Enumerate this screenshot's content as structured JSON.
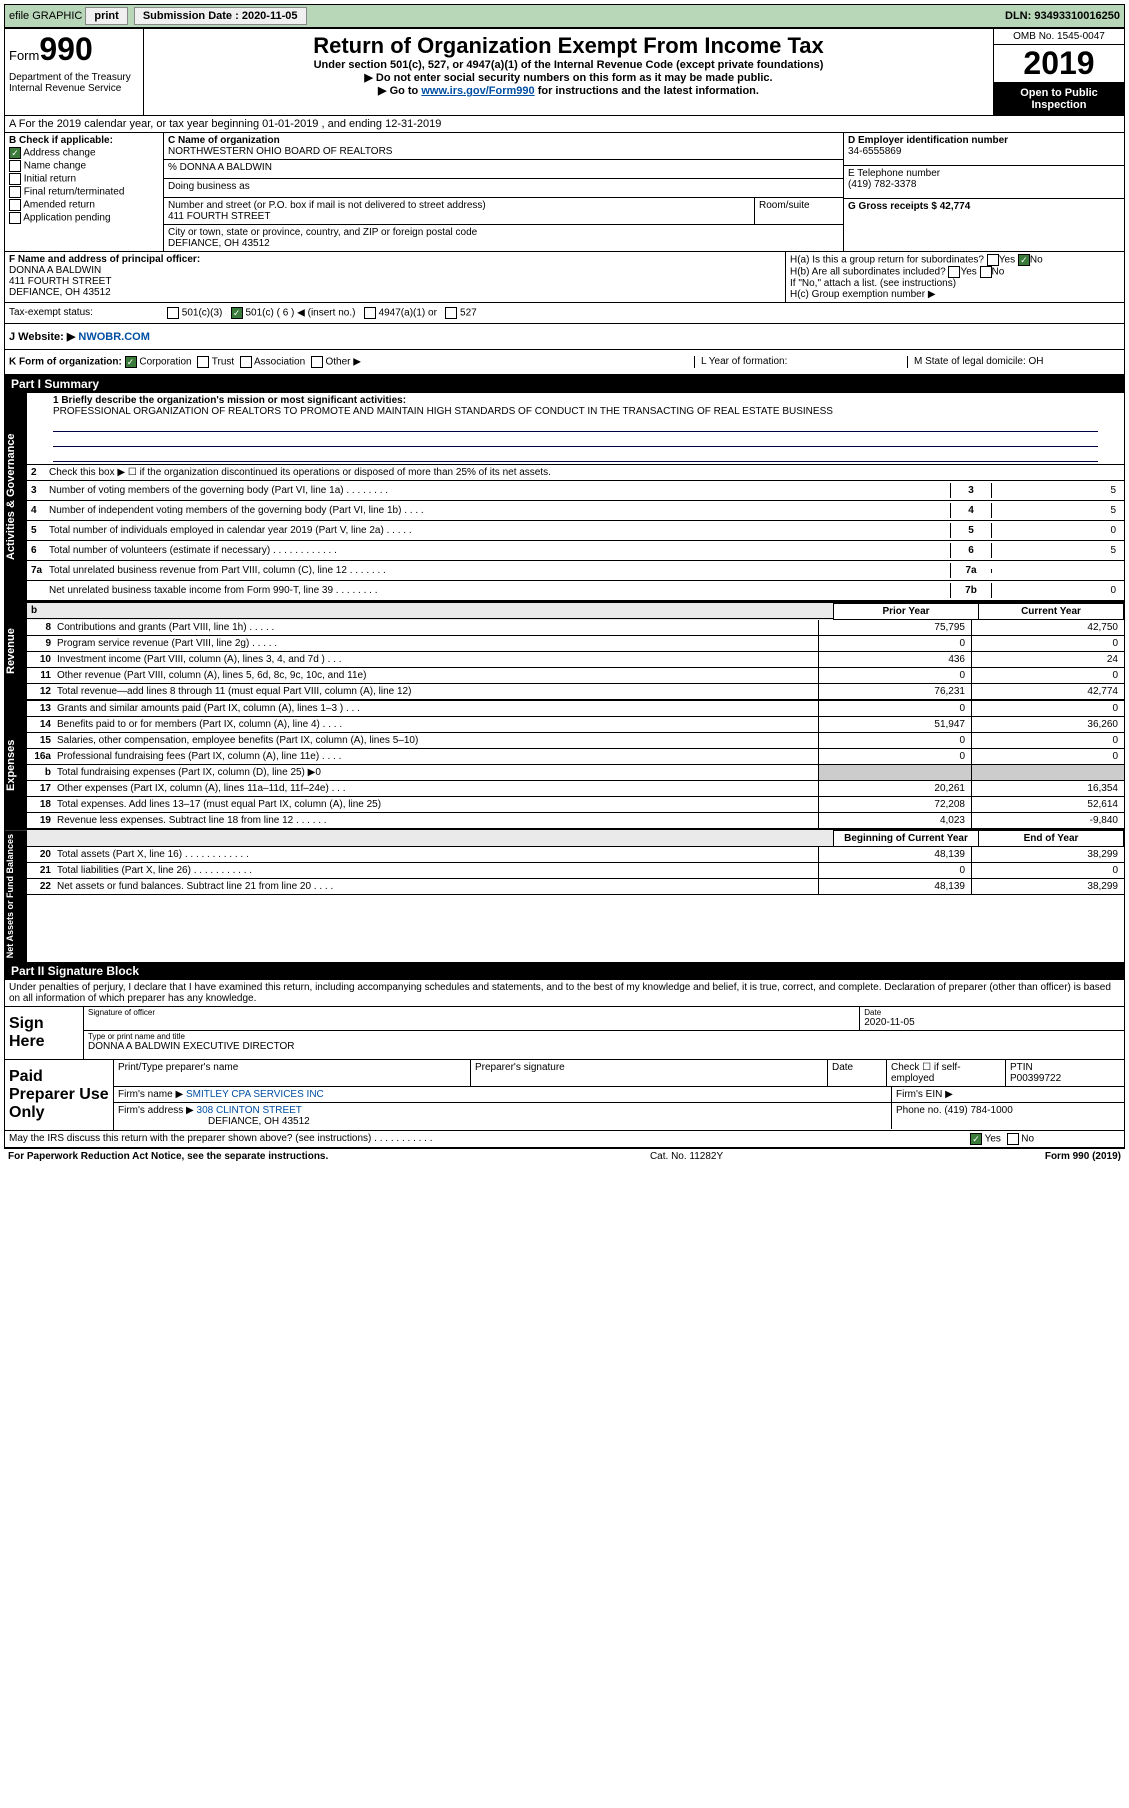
{
  "topbar": {
    "efile": "efile GRAPHIC",
    "print": "print",
    "sub_label": "Submission Date : 2020-11-05",
    "dln": "DLN: 93493310016250"
  },
  "header": {
    "form_word": "Form",
    "form_num": "990",
    "title": "Return of Organization Exempt From Income Tax",
    "sub1": "Under section 501(c), 527, or 4947(a)(1) of the Internal Revenue Code (except private foundations)",
    "sub2": "▶ Do not enter social security numbers on this form as it may be made public.",
    "sub3_a": "▶ Go to ",
    "sub3_link": "www.irs.gov/Form990",
    "sub3_b": " for instructions and the latest information.",
    "omb": "OMB No. 1545-0047",
    "year": "2019",
    "inspect1": "Open to Public",
    "inspect2": "Inspection",
    "dept1": "Department of the Treasury",
    "dept2": "Internal Revenue Service"
  },
  "rowA": "A For the 2019 calendar year, or tax year beginning 01-01-2019     , and ending 12-31-2019",
  "B": {
    "hdr": "B Check if applicable:",
    "addr": "Address change",
    "name": "Name change",
    "init": "Initial return",
    "final": "Final return/terminated",
    "amend": "Amended return",
    "app": "Application pending"
  },
  "C": {
    "name_lbl": "C Name of organization",
    "name": "NORTHWESTERN OHIO BOARD OF REALTORS",
    "care": "% DONNA A BALDWIN",
    "dba_lbl": "Doing business as",
    "street_lbl": "Number and street (or P.O. box if mail is not delivered to street address)",
    "street": "411 FOURTH STREET",
    "suite_lbl": "Room/suite",
    "city_lbl": "City or town, state or province, country, and ZIP or foreign postal code",
    "city": "DEFIANCE, OH  43512"
  },
  "D": {
    "ein_lbl": "D Employer identification number",
    "ein": "34-6555869",
    "tel_lbl": "E Telephone number",
    "tel": "(419) 782-3378",
    "gross_lbl": "G Gross receipts $ 42,774"
  },
  "F": {
    "lbl": "F  Name and address of principal officer:",
    "name": "DONNA A BALDWIN",
    "street": "411 FOURTH STREET",
    "city": "DEFIANCE, OH  43512"
  },
  "H": {
    "a": "H(a)  Is this a group return for subordinates?",
    "a_yes": "Yes",
    "a_no": "No",
    "b": "H(b)  Are all subordinates included?",
    "b_yes": "Yes",
    "b_no": "No",
    "b_note": "If \"No,\" attach a list. (see instructions)",
    "c": "H(c)  Group exemption number ▶"
  },
  "I": {
    "lbl": "Tax-exempt status:",
    "o1": "501(c)(3)",
    "o2": "501(c) ( 6 ) ◀ (insert no.)",
    "o3": "4947(a)(1) or",
    "o4": "527"
  },
  "J": {
    "lbl": "J  Website: ▶",
    "val": "NWOBR.COM"
  },
  "K": {
    "lbl": "K Form of organization:",
    "corp": "Corporation",
    "trust": "Trust",
    "assoc": "Association",
    "other": "Other ▶",
    "L_lbl": "L Year of formation:",
    "M_lbl": "M State of legal domicile: OH"
  },
  "part1": {
    "hdr": "Part I      Summary",
    "vtab_ag": "Activities & Governance",
    "vtab_rev": "Revenue",
    "vtab_exp": "Expenses",
    "vtab_net": "Net Assets or Fund Balances",
    "q1": "1   Briefly describe the organization's mission or most significant activities:",
    "q1_text": "PROFESSIONAL ORGANIZATION OF REALTORS TO PROMOTE AND MAINTAIN HIGH STANDARDS OF CONDUCT IN THE TRANSACTING OF REAL ESTATE BUSINESS",
    "q2": "Check this box ▶ ☐  if the organization discontinued its operations or disposed of more than 25% of its net assets.",
    "rows_ag": [
      {
        "n": "3",
        "t": "Number of voting members of the governing body (Part VI, line 1a)  .   .   .   .   .   .   .   .",
        "b": "3",
        "v": "5"
      },
      {
        "n": "4",
        "t": "Number of independent voting members of the governing body (Part VI, line 1b)   .   .   .   .",
        "b": "4",
        "v": "5"
      },
      {
        "n": "5",
        "t": "Total number of individuals employed in calendar year 2019 (Part V, line 2a)   .   .   .   .   .",
        "b": "5",
        "v": "0"
      },
      {
        "n": "6",
        "t": "Total number of volunteers (estimate if necessary)    .   .   .   .   .   .   .   .   .   .   .   .",
        "b": "6",
        "v": "5"
      },
      {
        "n": "7a",
        "t": "Total unrelated business revenue from Part VIII, column (C), line 12   .   .   .   .   .   .   .",
        "b": "7a",
        "v": ""
      },
      {
        "n": "",
        "t": "Net unrelated business taxable income from Form 990-T, line 39   .   .   .   .   .   .   .   .",
        "b": "7b",
        "v": "0"
      }
    ],
    "hdr_prior": "Prior Year",
    "hdr_curr": "Current Year",
    "rows_rev": [
      {
        "n": "8",
        "t": "Contributions and grants (Part VIII, line 1h)    .   .   .   .   .",
        "p": "75,795",
        "c": "42,750"
      },
      {
        "n": "9",
        "t": "Program service revenue (Part VIII, line 2g)    .   .   .   .   .",
        "p": "0",
        "c": "0"
      },
      {
        "n": "10",
        "t": "Investment income (Part VIII, column (A), lines 3, 4, and 7d )    .   .   .",
        "p": "436",
        "c": "24"
      },
      {
        "n": "11",
        "t": "Other revenue (Part VIII, column (A), lines 5, 6d, 8c, 9c, 10c, and 11e)",
        "p": "0",
        "c": "0"
      },
      {
        "n": "12",
        "t": "Total revenue—add lines 8 through 11 (must equal Part VIII, column (A), line 12)",
        "p": "76,231",
        "c": "42,774"
      }
    ],
    "rows_exp": [
      {
        "n": "13",
        "t": "Grants and similar amounts paid (Part IX, column (A), lines 1–3 )   .   .   .",
        "p": "0",
        "c": "0"
      },
      {
        "n": "14",
        "t": "Benefits paid to or for members (Part IX, column (A), line 4)    .   .   .   .",
        "p": "51,947",
        "c": "36,260"
      },
      {
        "n": "15",
        "t": "Salaries, other compensation, employee benefits (Part IX, column (A), lines 5–10)",
        "p": "0",
        "c": "0"
      },
      {
        "n": "16a",
        "t": "Professional fundraising fees (Part IX, column (A), line 11e)   .   .   .   .",
        "p": "0",
        "c": "0"
      },
      {
        "n": "b",
        "t": "Total fundraising expenses (Part IX, column (D), line 25) ▶0",
        "p": "",
        "c": "",
        "grey": true
      },
      {
        "n": "17",
        "t": "Other expenses (Part IX, column (A), lines 11a–11d, 11f–24e)   .   .   .",
        "p": "20,261",
        "c": "16,354"
      },
      {
        "n": "18",
        "t": "Total expenses. Add lines 13–17 (must equal Part IX, column (A), line 25)",
        "p": "72,208",
        "c": "52,614"
      },
      {
        "n": "19",
        "t": "Revenue less expenses. Subtract line 18 from line 12   .   .   .   .   .   .",
        "p": "4,023",
        "c": "-9,840"
      }
    ],
    "hdr_begin": "Beginning of Current Year",
    "hdr_end": "End of Year",
    "rows_net": [
      {
        "n": "20",
        "t": "Total assets (Part X, line 16)   .   .   .   .   .   .   .   .   .   .   .   .",
        "p": "48,139",
        "c": "38,299"
      },
      {
        "n": "21",
        "t": "Total liabilities (Part X, line 26)   .   .   .   .   .   .   .   .   .   .   .",
        "p": "0",
        "c": "0"
      },
      {
        "n": "22",
        "t": "Net assets or fund balances. Subtract line 21 from line 20   .   .   .   .",
        "p": "48,139",
        "c": "38,299"
      }
    ]
  },
  "part2": {
    "hdr": "Part II     Signature Block",
    "declare": "Under penalties of perjury, I declare that I have examined this return, including accompanying schedules and statements, and to the best of my knowledge and belief, it is true, correct, and complete. Declaration of preparer (other than officer) is based on all information of which preparer has any knowledge.",
    "sign_here": "Sign Here",
    "sig_lbl": "Signature of officer",
    "date_lbl": "Date",
    "date_val": "2020-11-05",
    "name_title": "DONNA A BALDWIN  EXECUTIVE DIRECTOR",
    "name_title_lbl": "Type or print name and title",
    "paid": "Paid Preparer Use Only",
    "prep_name_lbl": "Print/Type preparer's name",
    "prep_sig_lbl": "Preparer's signature",
    "prep_date_lbl": "Date",
    "self_emp": "Check ☐ if self-employed",
    "ptin_lbl": "PTIN",
    "ptin": "P00399722",
    "firm_name_lbl": "Firm's name    ▶",
    "firm_name": "SMITLEY CPA SERVICES INC",
    "firm_ein_lbl": "Firm's EIN ▶",
    "firm_addr_lbl": "Firm's address ▶",
    "firm_addr1": "308 CLINTON STREET",
    "firm_addr2": "DEFIANCE, OH  43512",
    "phone_lbl": "Phone no. (419) 784-1000",
    "discuss": "May the IRS discuss this return with the preparer shown above? (see instructions)   .   .   .   .   .   .   .   .   .   .   .",
    "discuss_yes": "Yes",
    "discuss_no": "No"
  },
  "footer": {
    "left": "For Paperwork Reduction Act Notice, see the separate instructions.",
    "mid": "Cat. No. 11282Y",
    "right": "Form 990 (2019)"
  }
}
